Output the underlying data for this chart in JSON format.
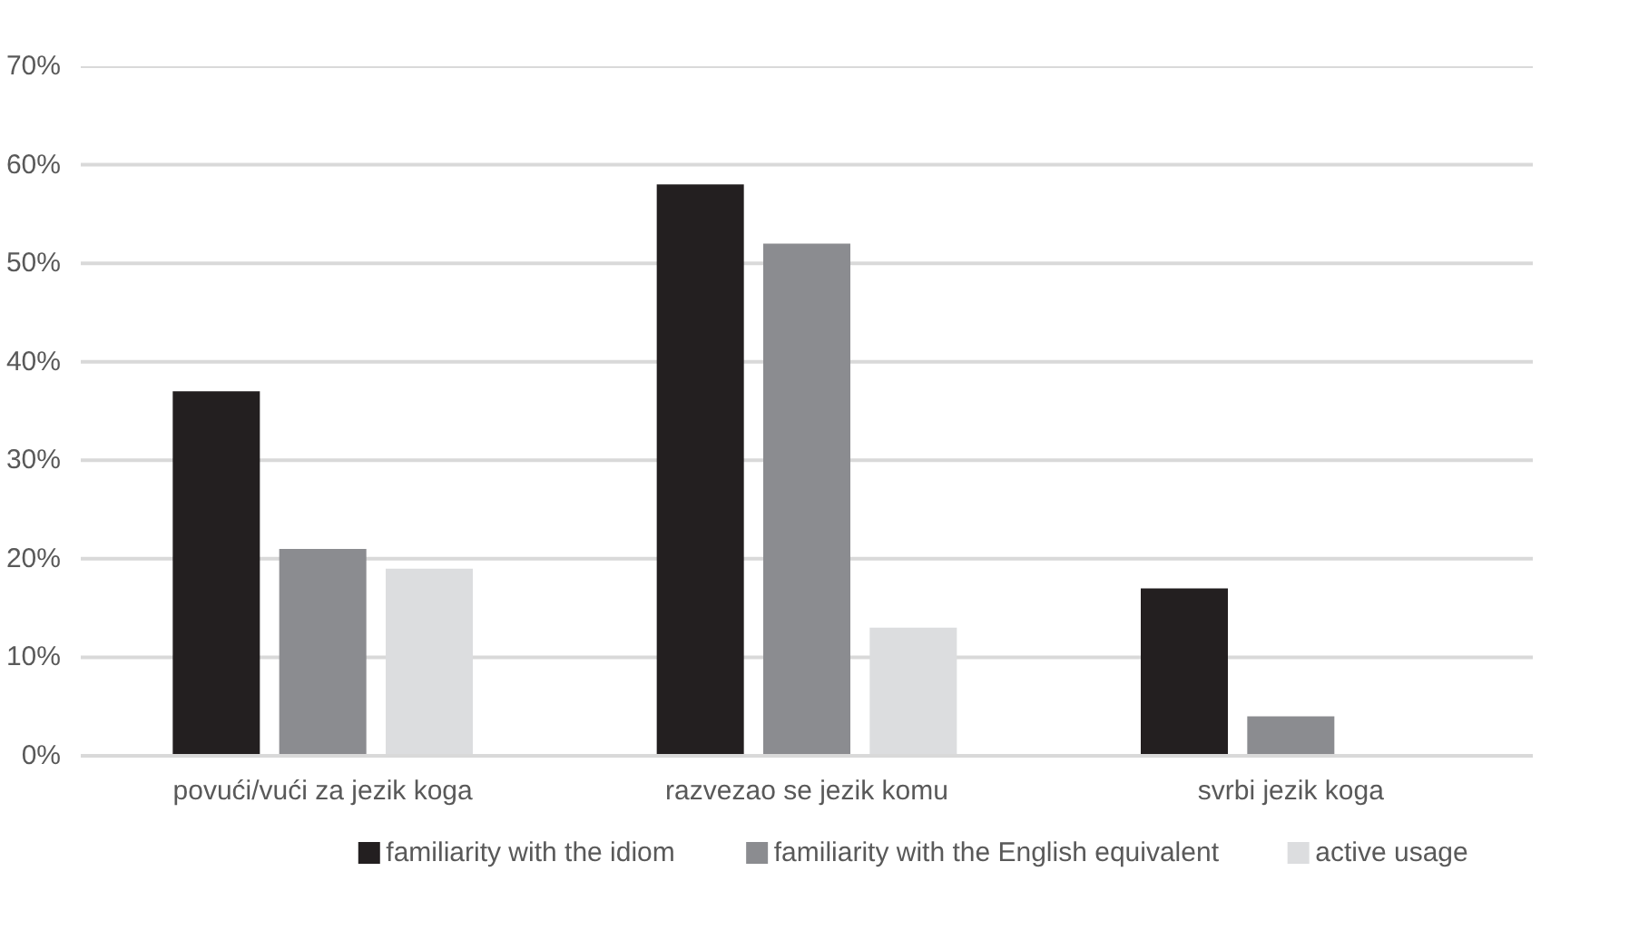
{
  "chart_data": {
    "type": "bar",
    "categories": [
      "povući/vući za jezik koga",
      "razvezao se jezik komu",
      "svrbi jezik koga"
    ],
    "series": [
      {
        "name": "familiarity with the idiom",
        "color": "#231f20",
        "values": [
          37,
          58,
          17
        ]
      },
      {
        "name": "familiarity with the English equivalent",
        "color": "#8b8c90",
        "values": [
          21,
          52,
          4
        ]
      },
      {
        "name": "active usage",
        "color": "#dcdddf",
        "values": [
          19,
          13,
          0
        ]
      }
    ],
    "ylim": [
      0,
      70
    ],
    "yticks": [
      {
        "value": 0,
        "label": "0%"
      },
      {
        "value": 10,
        "label": "10%"
      },
      {
        "value": 20,
        "label": "20%"
      },
      {
        "value": 30,
        "label": "30%"
      },
      {
        "value": 40,
        "label": "40%"
      },
      {
        "value": 50,
        "label": "50%"
      },
      {
        "value": 60,
        "label": "60%"
      },
      {
        "value": 70,
        "label": "70%"
      }
    ],
    "grid": "y",
    "legend": "bottom"
  }
}
